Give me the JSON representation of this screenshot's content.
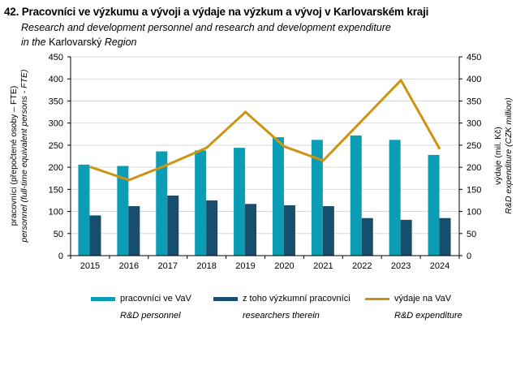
{
  "title": {
    "number": "42.",
    "cz": "Pracovníci ve výzkumu a vývoji a výdaje na výzkum a vývoj v Karlovarském kraji",
    "en_line1": "Research and development personnel and research and development expenditure",
    "en_line2_a": "in the",
    "en_line2_b": "Karlovarský",
    "en_line2_c": "Region"
  },
  "colors": {
    "personnel": "#0B9DB6",
    "researchers": "#174E6E",
    "expenditure": "#CC9410",
    "grid": "#D9D9D9",
    "axis": "#000000"
  },
  "chart_data": {
    "type": "bar",
    "categories": [
      "2015",
      "2016",
      "2017",
      "2018",
      "2019",
      "2020",
      "2021",
      "2022",
      "2023",
      "2024"
    ],
    "series": [
      {
        "name": "pracovníci ve VaV",
        "name_en": "R&D personnel",
        "type": "bar",
        "axis": "left",
        "values": [
          206,
          203,
          236,
          238,
          244,
          268,
          262,
          272,
          262,
          228
        ]
      },
      {
        "name": "z toho výzkumní pracovníci",
        "name_en": "researchers therein",
        "type": "bar",
        "axis": "left",
        "values": [
          91,
          112,
          136,
          125,
          117,
          114,
          112,
          85,
          81,
          85
        ]
      },
      {
        "name": "výdaje na VaV",
        "name_en": "R&D expenditure",
        "type": "line",
        "axis": "right",
        "values": [
          201,
          171,
          206,
          244,
          325,
          247,
          215,
          306,
          397,
          241
        ]
      }
    ],
    "y_left": {
      "label_cz": "pracovníci (přepočtené osoby  – FTE)",
      "label_en": "personnel (full-time equivalent persons - FTE)",
      "ylim": [
        0,
        450
      ],
      "ticks": [
        "0",
        "50",
        "100",
        "150",
        "200",
        "250",
        "300",
        "350",
        "400",
        "450"
      ]
    },
    "y_right": {
      "label_cz": "výdaje (mil. Kč)",
      "label_en": "R&D expenditure (CZK million)",
      "ylim": [
        0,
        450
      ],
      "ticks": [
        "0",
        "50",
        "100",
        "150",
        "200",
        "250",
        "300",
        "350",
        "400",
        "450"
      ]
    },
    "grid": true,
    "legend_position": "bottom"
  }
}
